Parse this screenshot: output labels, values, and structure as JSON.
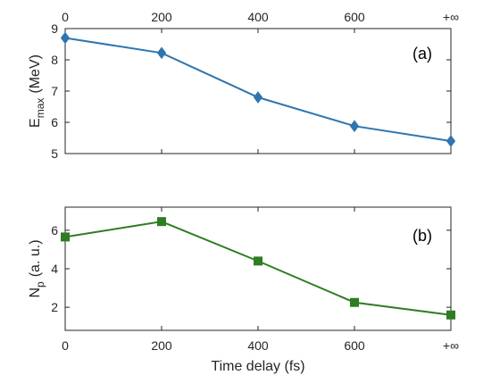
{
  "chart_data": [
    {
      "type": "line",
      "panel_label": "(a)",
      "ylabel_main": "E",
      "ylabel_sub": "max",
      "ylabel_unit": "(MeV)",
      "x_tick_labels": [
        "0",
        "200",
        "400",
        "600",
        "+∞"
      ],
      "x_tick_position": "top",
      "y_ticks": [
        5,
        6,
        7,
        8,
        9
      ],
      "ylim": [
        5,
        9
      ],
      "x": [
        "0",
        "200",
        "400",
        "600",
        "+∞"
      ],
      "series": [
        {
          "values": [
            8.7,
            8.22,
            6.8,
            5.88,
            5.4
          ],
          "color": "#2e75b0",
          "marker": "diamond"
        }
      ],
      "legend": "none",
      "grid": false
    },
    {
      "type": "line",
      "panel_label": "(b)",
      "ylabel_main": "N",
      "ylabel_sub": "p",
      "ylabel_unit": "(a. u.)",
      "x_tick_labels": [
        "0",
        "200",
        "400",
        "600",
        "+∞"
      ],
      "x_tick_position": "bottom",
      "y_ticks": [
        2,
        4,
        6
      ],
      "ylim": [
        0.8,
        7.2
      ],
      "x": [
        "0",
        "200",
        "400",
        "600",
        "+∞"
      ],
      "xlabel": "Time delay (fs)",
      "series": [
        {
          "values": [
            5.65,
            6.45,
            4.4,
            2.25,
            1.6
          ],
          "color": "#2e7d22",
          "marker": "square"
        }
      ],
      "legend": "none",
      "grid": false
    }
  ]
}
